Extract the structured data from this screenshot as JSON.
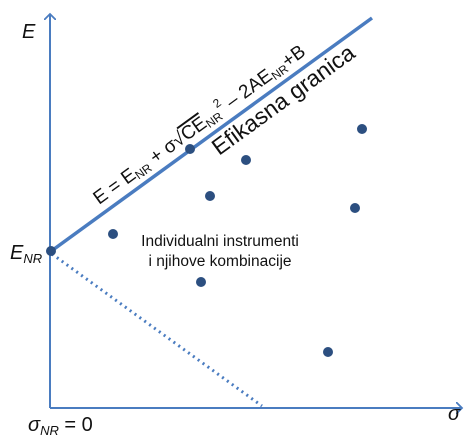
{
  "axes": {
    "y_label": "E",
    "x_label": "σ",
    "origin_label_sigma": "σ",
    "origin_label_sub": "NR",
    "origin_label_rest": " = 0",
    "intercept_label": "E",
    "intercept_label_sub": "NR"
  },
  "efficient_frontier": {
    "label": "Efikasna granica",
    "equation": {
      "part1": "E = E",
      "sub1": "NR",
      "part2": " + σ√",
      "part3": "CE",
      "sub3": "NR",
      "sup3": "2",
      "part4": " – 2AE",
      "sub4": "NR",
      "part5": "+B"
    }
  },
  "region_label": {
    "line1": "Individualni instrumenti",
    "line2": "i njihove kombinacije"
  },
  "colors": {
    "axis": "#4a7cc0",
    "frontier": "#4a7cc0",
    "dotted": "#4a7cc0",
    "point": "#2c4f80",
    "text": "#111111"
  }
}
